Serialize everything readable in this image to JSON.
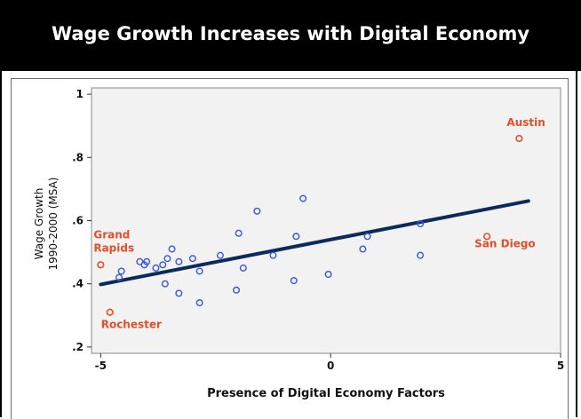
{
  "title": "Wage Growth Increases with Digital Economy",
  "chart_data": {
    "type": "scatter",
    "xlabel": "Presence of Digital Economy Factors",
    "ylabel_line1": "Wage Growth",
    "ylabel_line2": "1990-2000 (MSA)",
    "xlim": [
      -5.2,
      5.0
    ],
    "ylim": [
      0.18,
      1.02
    ],
    "x_ticks": [
      {
        "value": -5,
        "label": "-5"
      },
      {
        "value": 0,
        "label": "0"
      },
      {
        "value": 5,
        "label": "5"
      }
    ],
    "y_ticks": [
      {
        "value": 0.2,
        "label": ".2"
      },
      {
        "value": 0.4,
        "label": ".4"
      },
      {
        "value": 0.6,
        "label": ".6"
      },
      {
        "value": 0.8,
        "label": ".8"
      },
      {
        "value": 1.0,
        "label": "1"
      }
    ],
    "grid": false,
    "trend_line": {
      "x": [
        -5.0,
        4.3
      ],
      "y": [
        0.398,
        0.662
      ]
    },
    "points": [
      {
        "x": -4.6,
        "y": 0.42
      },
      {
        "x": -4.55,
        "y": 0.44
      },
      {
        "x": -4.15,
        "y": 0.47
      },
      {
        "x": -4.05,
        "y": 0.46
      },
      {
        "x": -4.0,
        "y": 0.47
      },
      {
        "x": -3.8,
        "y": 0.45
      },
      {
        "x": -3.65,
        "y": 0.46
      },
      {
        "x": -3.55,
        "y": 0.48
      },
      {
        "x": -3.6,
        "y": 0.4
      },
      {
        "x": -3.45,
        "y": 0.51
      },
      {
        "x": -3.3,
        "y": 0.47
      },
      {
        "x": -3.3,
        "y": 0.37
      },
      {
        "x": -3.0,
        "y": 0.48
      },
      {
        "x": -2.85,
        "y": 0.44
      },
      {
        "x": -2.85,
        "y": 0.34
      },
      {
        "x": -2.4,
        "y": 0.49
      },
      {
        "x": -2.05,
        "y": 0.38
      },
      {
        "x": -2.0,
        "y": 0.56
      },
      {
        "x": -1.9,
        "y": 0.45
      },
      {
        "x": -1.6,
        "y": 0.63
      },
      {
        "x": -1.25,
        "y": 0.49
      },
      {
        "x": -0.8,
        "y": 0.41
      },
      {
        "x": -0.75,
        "y": 0.55
      },
      {
        "x": -0.6,
        "y": 0.67
      },
      {
        "x": -0.05,
        "y": 0.43
      },
      {
        "x": 0.7,
        "y": 0.51
      },
      {
        "x": 0.8,
        "y": 0.55
      },
      {
        "x": 1.95,
        "y": 0.59
      },
      {
        "x": 1.95,
        "y": 0.49
      }
    ],
    "labeled_points": [
      {
        "name": "Austin",
        "x": 4.1,
        "y": 0.86
      },
      {
        "name": "San Diego",
        "x": 3.4,
        "y": 0.55
      },
      {
        "name": "Grand Rapids",
        "x": -5.0,
        "y": 0.46
      },
      {
        "name": "Rochester",
        "x": -4.8,
        "y": 0.31
      }
    ],
    "colors": {
      "point": "#3a55e0",
      "labeled_point": "#e0502a",
      "trend_line": "#0d2a5c",
      "plot_background": "#f2f2f2"
    }
  }
}
